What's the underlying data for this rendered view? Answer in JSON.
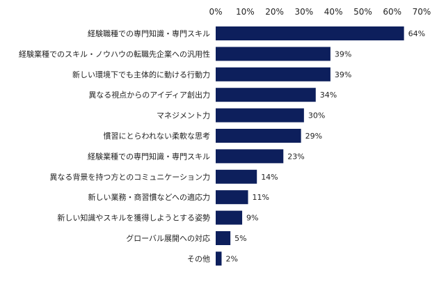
{
  "chart_data": {
    "type": "bar",
    "orientation": "horizontal",
    "title": "",
    "xlabel": "",
    "ylabel": "",
    "xlim": [
      0,
      70
    ],
    "ticks": [
      0,
      10,
      20,
      30,
      40,
      50,
      60,
      70
    ],
    "tick_suffix": "%",
    "grid": false,
    "bar_color": "#0d1f5c",
    "categories": [
      "経験職種での専門知識・専門スキル",
      "経験業種でのスキル・ノウハウの転職先企業への汎用性",
      "新しい環境下でも主体的に動ける行動力",
      "異なる視点からのアイディア創出力",
      "マネジメント力",
      "慣習にとらわれない柔軟な思考",
      "経験業種での専門知識・専門スキル",
      "異なる背景を持つ方とのコミュニケーション力",
      "新しい業務・商習慣などへの適応力",
      "新しい知識やスキルを獲得しようとする姿勢",
      "グローバル展開への対応",
      "その他"
    ],
    "values": [
      64,
      39,
      39,
      34,
      30,
      29,
      23,
      14,
      11,
      9,
      5,
      2
    ],
    "value_labels": [
      "64%",
      "39%",
      "39%",
      "34%",
      "30%",
      "29%",
      "23%",
      "14%",
      "11%",
      "9%",
      "5%",
      "2%"
    ]
  }
}
